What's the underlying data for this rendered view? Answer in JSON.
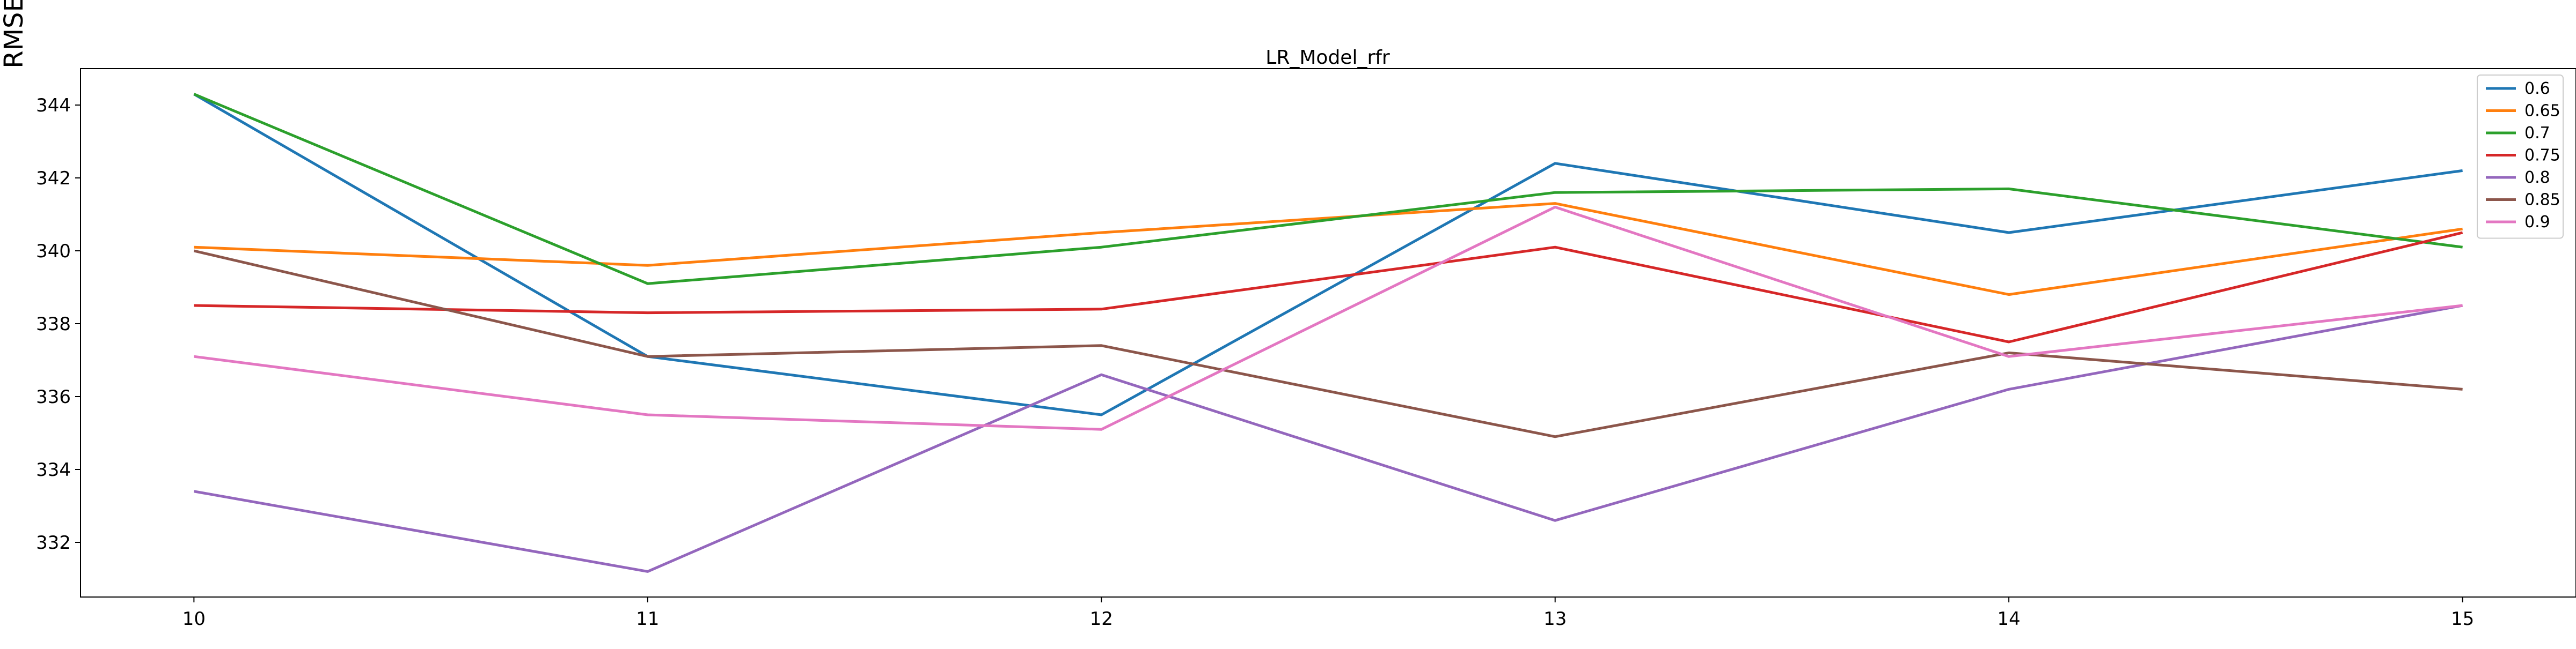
{
  "chart_data": {
    "type": "line",
    "title": "LR_Model_rfr",
    "xlabel": "",
    "ylabel": "RMSE",
    "x": [
      10,
      11,
      12,
      13,
      14,
      15
    ],
    "xlim": [
      9.75,
      15.25
    ],
    "ylim": [
      330.5,
      345
    ],
    "yticks": [
      332,
      334,
      336,
      338,
      340,
      342,
      344
    ],
    "grid": false,
    "legend_position": "top-right",
    "series": [
      {
        "name": "0.6",
        "color": "#1f77b4",
        "values": [
          344.3,
          337.1,
          335.5,
          342.4,
          340.5,
          342.2
        ]
      },
      {
        "name": "0.65",
        "color": "#ff7f0e",
        "values": [
          340.1,
          339.6,
          340.5,
          341.3,
          338.8,
          340.6
        ]
      },
      {
        "name": "0.7",
        "color": "#2ca02c",
        "values": [
          344.3,
          339.1,
          340.1,
          341.6,
          341.7,
          340.1
        ]
      },
      {
        "name": "0.75",
        "color": "#d62728",
        "values": [
          338.5,
          338.3,
          338.4,
          340.1,
          337.5,
          340.5
        ]
      },
      {
        "name": "0.8",
        "color": "#9467bd",
        "values": [
          333.4,
          331.2,
          336.6,
          332.6,
          336.2,
          338.5
        ]
      },
      {
        "name": "0.85",
        "color": "#8c564b",
        "values": [
          340.0,
          337.1,
          337.4,
          334.9,
          337.2,
          336.2
        ]
      },
      {
        "name": "0.9",
        "color": "#e377c2",
        "values": [
          337.1,
          335.5,
          335.1,
          341.2,
          337.1,
          338.5
        ]
      }
    ]
  }
}
